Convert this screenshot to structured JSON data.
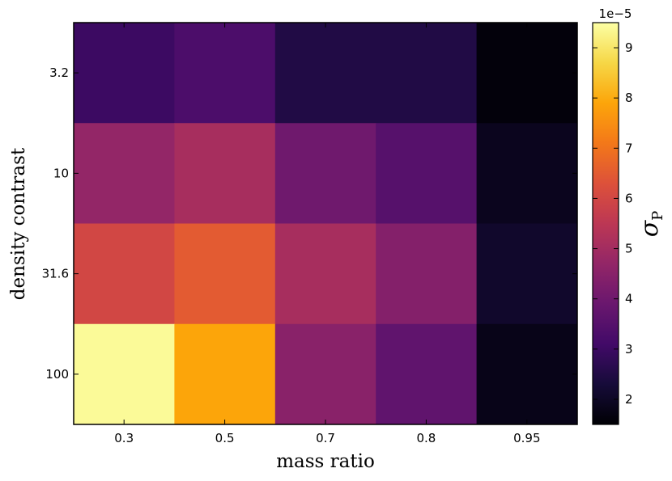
{
  "chart_data": {
    "type": "heatmap",
    "x_categories": [
      "0.3",
      "0.5",
      "0.7",
      "0.8",
      "0.95"
    ],
    "y_categories": [
      "3.2",
      "10",
      "31.6",
      "100"
    ],
    "xlabel": "mass ratio",
    "ylabel": "density contrast",
    "values": [
      [
        3.0,
        3.3,
        2.5,
        2.5,
        1.6
      ],
      [
        4.7,
        5.1,
        4.0,
        3.5,
        1.9
      ],
      [
        6.0,
        6.5,
        5.1,
        4.4,
        2.1
      ],
      [
        9.4,
        7.9,
        4.5,
        3.7,
        1.8
      ]
    ],
    "colorbar": {
      "label": "σ",
      "label_subscript": "P",
      "offset_text": "1e−5",
      "vmin": 1.5,
      "vmax": 9.5,
      "ticks": [
        "2",
        "3",
        "4",
        "5",
        "6",
        "7",
        "8",
        "9"
      ],
      "colormap": "inferno"
    }
  }
}
